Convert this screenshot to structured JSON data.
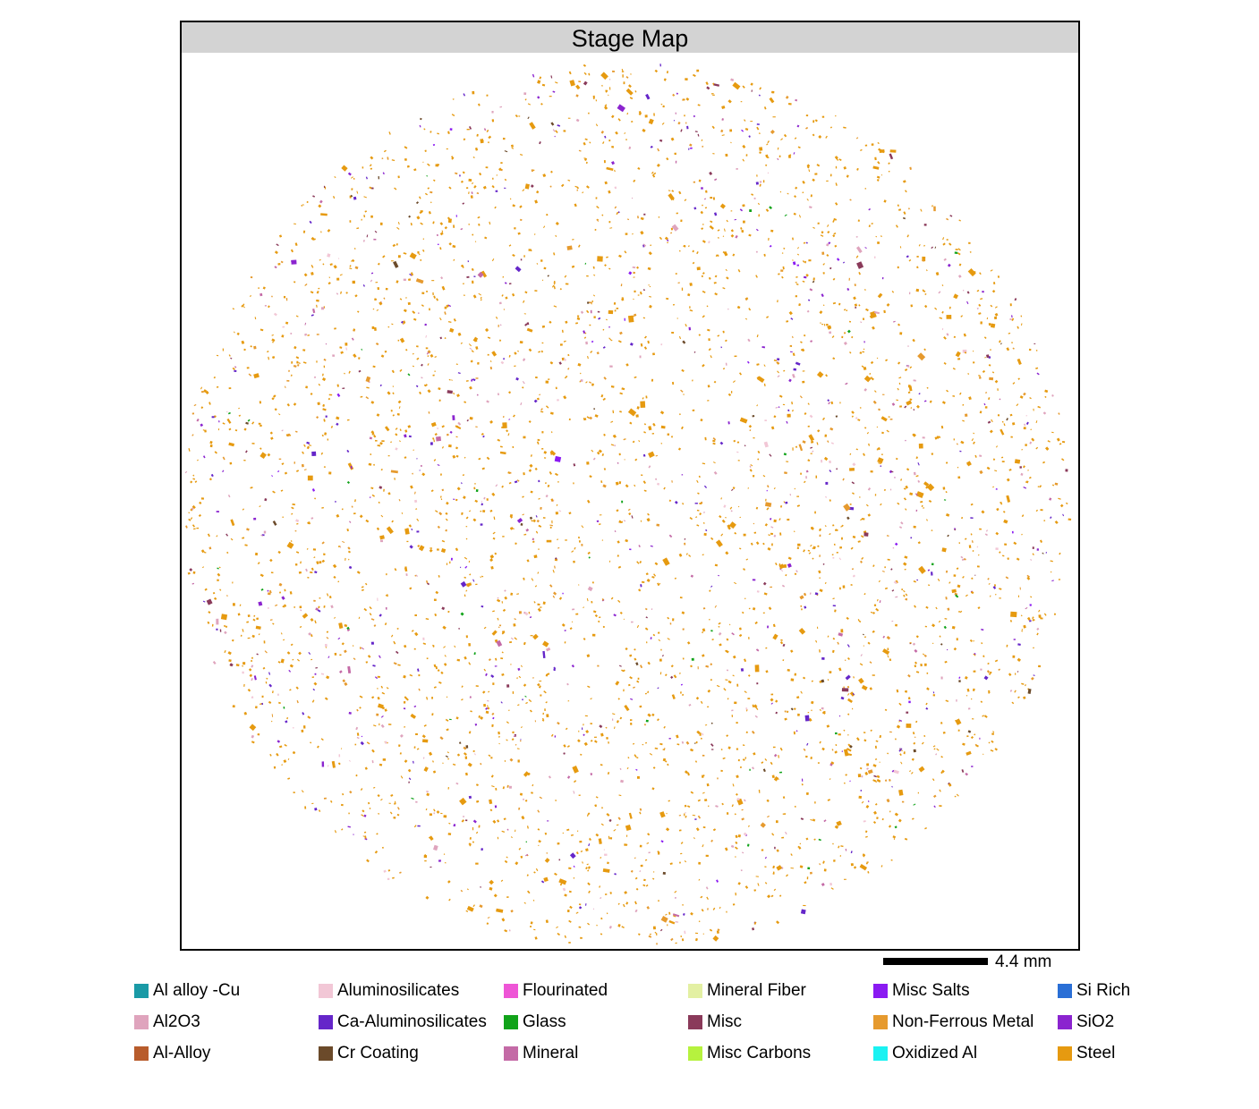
{
  "title": "Stage Map",
  "scale_bar": {
    "label": "4.4 mm"
  },
  "legend": [
    {
      "label": "Al alloy -Cu",
      "color": "#1a9aa6"
    },
    {
      "label": "Al2O3",
      "color": "#dfa4bd"
    },
    {
      "label": "Al-Alloy",
      "color": "#b85c2c"
    },
    {
      "label": "Aluminosilicates",
      "color": "#f2c7d6"
    },
    {
      "label": "Ca-Aluminosilicates",
      "color": "#6526c9"
    },
    {
      "label": "Cr Coating",
      "color": "#6b4a2a"
    },
    {
      "label": "Flourinated",
      "color": "#ee55d6"
    },
    {
      "label": "Glass",
      "color": "#11a31a"
    },
    {
      "label": "Mineral",
      "color": "#c46aa6"
    },
    {
      "label": "Mineral Fiber",
      "color": "#e3f0a3"
    },
    {
      "label": "Misc",
      "color": "#8a3a5a"
    },
    {
      "label": "Misc Carbons",
      "color": "#b6f23e"
    },
    {
      "label": "Misc Salts",
      "color": "#8a1af2"
    },
    {
      "label": "Non-Ferrous Metal",
      "color": "#e69a2e"
    },
    {
      "label": "Oxidized Al",
      "color": "#1af2f2"
    },
    {
      "label": "Si Rich",
      "color": "#2a6fd6"
    },
    {
      "label": "SiO2",
      "color": "#8b24cf"
    },
    {
      "label": "Steel",
      "color": "#e69a10"
    }
  ]
}
